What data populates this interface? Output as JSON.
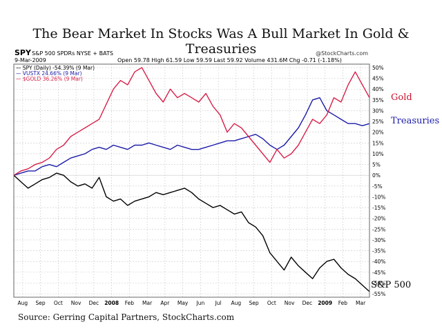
{
  "title": "The Bear Market In Stocks Was A Bull Market In Gold & Treasuries",
  "source": "Source: Gerring Capital Partners, StockCharts.com",
  "header": {
    "symbol": "SPY",
    "name": "S&P 500 SPDRs NYSE + BATS",
    "brand": "@StockCharts.com",
    "date": "9-Mar-2009",
    "ohlc": "Open 59.78  High 61.59  Low 59.59  Last 59.92  Volume 431.6M  Chg -0.71 (-1.18%)"
  },
  "legend": [
    {
      "text": "— SPY (Daily) -54.39% (9 Mar)",
      "color": "#000000"
    },
    {
      "text": "— VUSTX 24.66% (9 Mar)",
      "color": "#1a1aa8"
    },
    {
      "text": "— $GOLD 36.26% (9 Mar)",
      "color": "#d8204a"
    }
  ],
  "annotations": {
    "gold": "Gold",
    "treasuries": "Treasuries",
    "sp500": "S&P 500"
  },
  "colors": {
    "spy": "#000000",
    "vustx": "#1a1aa8",
    "gold": "#d8204a",
    "grid": "#c8c8c8"
  },
  "chart_data": {
    "type": "line",
    "ylim": [
      -55,
      50
    ],
    "xlim": [
      0,
      20
    ],
    "yticks": [
      50,
      45,
      40,
      35,
      30,
      25,
      20,
      15,
      10,
      5,
      0,
      -5,
      -10,
      -15,
      -20,
      -25,
      -30,
      -35,
      -40,
      -45,
      -50,
      -55
    ],
    "ytick_labels": [
      "50%",
      "45%",
      "40%",
      "35%",
      "30%",
      "25%",
      "20%",
      "15%",
      "10%",
      "5%",
      "0%",
      "-5%",
      "-10%",
      "-15%",
      "-20%",
      "-25%",
      "-30%",
      "-35%",
      "-40%",
      "-45%",
      "-50%",
      "-55%"
    ],
    "xticks": [
      0.5,
      1.5,
      2.5,
      3.5,
      4.5,
      5.5,
      6.5,
      7.5,
      8.5,
      9.5,
      10.5,
      11.5,
      12.5,
      13.5,
      14.5,
      15.5,
      16.5,
      17.5,
      18.5,
      19.5
    ],
    "xtick_labels": [
      "Aug",
      "Sep",
      "Oct",
      "Nov",
      "Dec",
      "2008",
      "Feb",
      "Mar",
      "Apr",
      "May",
      "Jun",
      "Jul",
      "Aug",
      "Sep",
      "Oct",
      "Nov",
      "Dec",
      "2009",
      "Feb",
      "Mar"
    ],
    "series": [
      {
        "key": "spy",
        "x": [
          0,
          0.4,
          0.8,
          1.2,
          1.6,
          2,
          2.4,
          2.8,
          3.2,
          3.6,
          4,
          4.4,
          4.8,
          5.2,
          5.6,
          6,
          6.4,
          6.8,
          7.2,
          7.6,
          8,
          8.4,
          8.8,
          9.2,
          9.6,
          10,
          10.4,
          10.8,
          11.2,
          11.6,
          12,
          12.4,
          12.8,
          13.2,
          13.6,
          14,
          14.4,
          14.8,
          15.2,
          15.6,
          16,
          16.4,
          16.8,
          17.2,
          17.6,
          18,
          18.4,
          18.8,
          19.2,
          19.6,
          20
        ],
        "values": [
          0,
          -3,
          -6,
          -4,
          -2,
          -1,
          1,
          0,
          -3,
          -5,
          -4,
          -6,
          -1,
          -10,
          -12,
          -11,
          -14,
          -12,
          -11,
          -10,
          -8,
          -9,
          -8,
          -7,
          -6,
          -8,
          -11,
          -13,
          -15,
          -14,
          -16,
          -18,
          -17,
          -22,
          -24,
          -28,
          -36,
          -40,
          -44,
          -38,
          -42,
          -45,
          -48,
          -43,
          -40,
          -39,
          -43,
          -46,
          -48,
          -51,
          -54
        ]
      },
      {
        "key": "vustx",
        "x": [
          0,
          0.4,
          0.8,
          1.2,
          1.6,
          2,
          2.4,
          2.8,
          3.2,
          3.6,
          4,
          4.4,
          4.8,
          5.2,
          5.6,
          6,
          6.4,
          6.8,
          7.2,
          7.6,
          8,
          8.4,
          8.8,
          9.2,
          9.6,
          10,
          10.4,
          10.8,
          11.2,
          11.6,
          12,
          12.4,
          12.8,
          13.2,
          13.6,
          14,
          14.4,
          14.8,
          15.2,
          15.6,
          16,
          16.4,
          16.8,
          17.2,
          17.6,
          18,
          18.4,
          18.8,
          19.2,
          19.6,
          20
        ],
        "values": [
          0,
          1,
          2,
          2,
          4,
          5,
          4,
          6,
          8,
          9,
          10,
          12,
          13,
          12,
          14,
          13,
          12,
          14,
          14,
          15,
          14,
          13,
          12,
          14,
          13,
          12,
          12,
          13,
          14,
          15,
          16,
          16,
          17,
          18,
          19,
          17,
          14,
          12,
          14,
          18,
          22,
          28,
          35,
          36,
          30,
          28,
          26,
          24,
          24,
          23,
          24
        ]
      },
      {
        "key": "gold",
        "x": [
          0,
          0.4,
          0.8,
          1.2,
          1.6,
          2,
          2.4,
          2.8,
          3.2,
          3.6,
          4,
          4.4,
          4.8,
          5.2,
          5.6,
          6,
          6.4,
          6.8,
          7.2,
          7.6,
          8,
          8.4,
          8.8,
          9.2,
          9.6,
          10,
          10.4,
          10.8,
          11.2,
          11.6,
          12,
          12.4,
          12.8,
          13.2,
          13.6,
          14,
          14.4,
          14.8,
          15.2,
          15.6,
          16,
          16.4,
          16.8,
          17.2,
          17.6,
          18,
          18.4,
          18.8,
          19.2,
          19.6,
          20
        ],
        "values": [
          0,
          2,
          3,
          5,
          6,
          8,
          12,
          14,
          18,
          20,
          22,
          24,
          26,
          33,
          40,
          44,
          42,
          48,
          50,
          44,
          38,
          34,
          40,
          36,
          38,
          36,
          34,
          38,
          32,
          28,
          20,
          24,
          22,
          18,
          14,
          10,
          6,
          12,
          8,
          10,
          14,
          20,
          26,
          24,
          28,
          36,
          34,
          42,
          48,
          42,
          36
        ]
      }
    ]
  }
}
